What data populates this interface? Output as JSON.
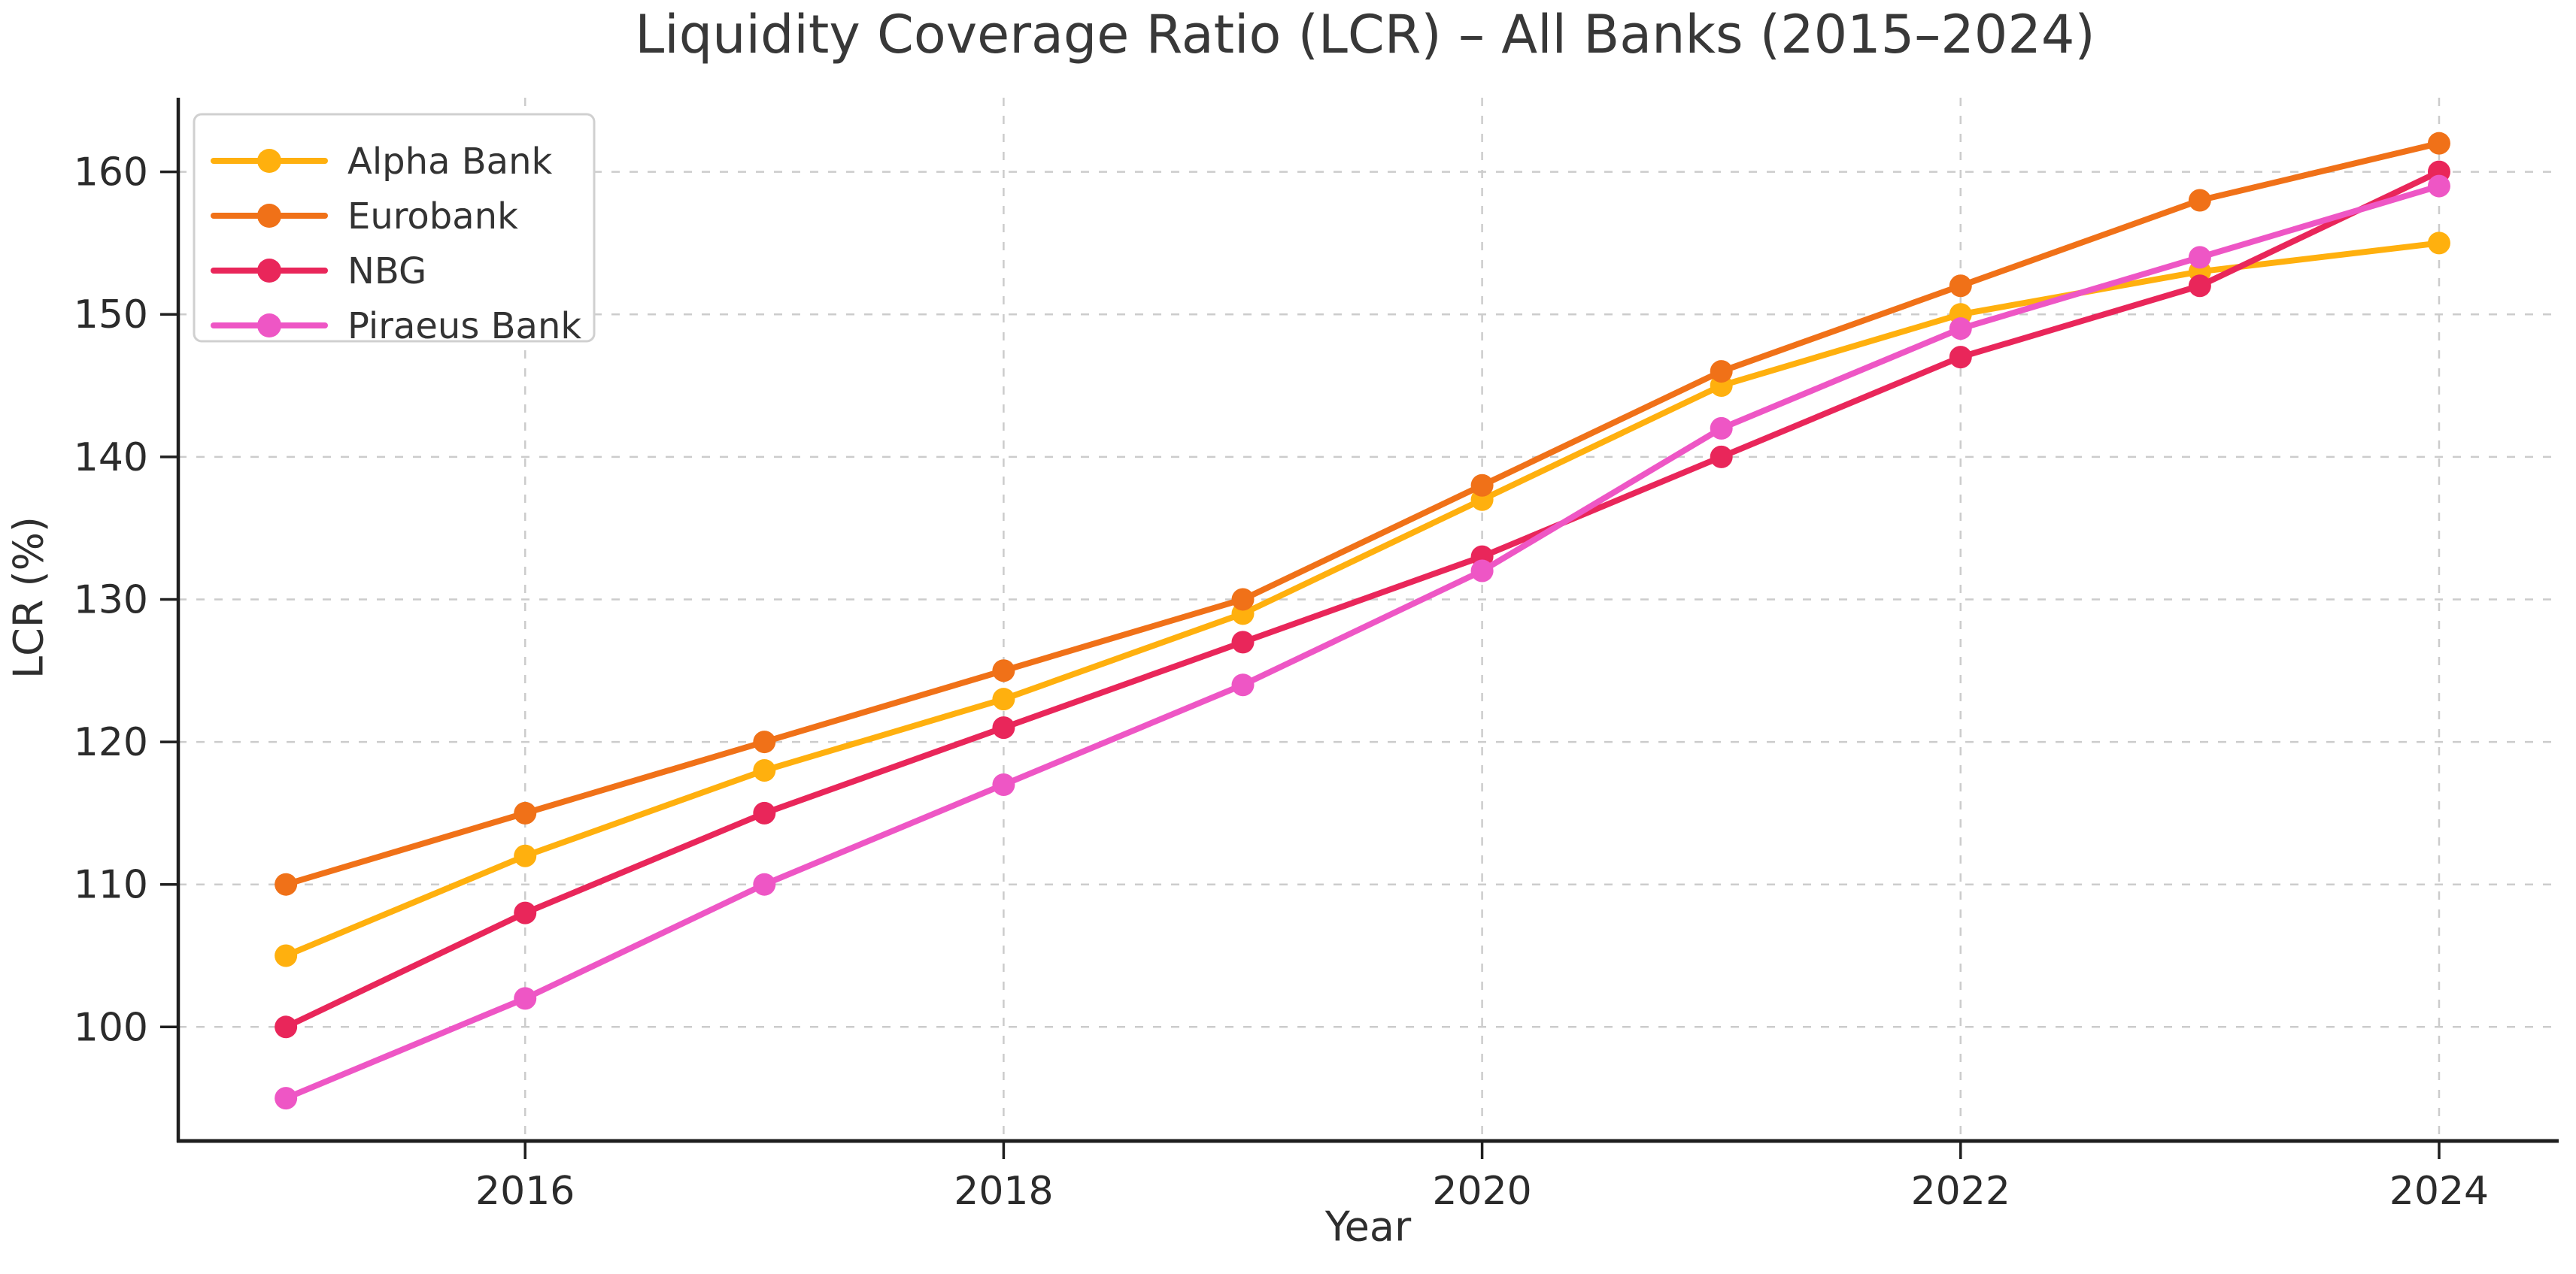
{
  "chart_data": {
    "type": "line",
    "title": "Liquidity Coverage Ratio (LCR) – All Banks (2015–2024)",
    "xlabel": "Year",
    "ylabel": "LCR (%)",
    "x": [
      2015,
      2016,
      2017,
      2018,
      2019,
      2020,
      2021,
      2022,
      2023,
      2024
    ],
    "series": [
      {
        "name": "Alpha Bank",
        "color": "#FFB00E",
        "values": [
          105,
          112,
          118,
          123,
          129,
          137,
          145,
          150,
          153,
          155
        ]
      },
      {
        "name": "Eurobank",
        "color": "#F07118",
        "values": [
          110,
          115,
          120,
          125,
          130,
          138,
          146,
          152,
          158,
          162
        ]
      },
      {
        "name": "NBG",
        "color": "#E9265A",
        "values": [
          100,
          108,
          115,
          121,
          127,
          133,
          140,
          147,
          152,
          160
        ]
      },
      {
        "name": "Piraeus Bank",
        "color": "#EE56C5",
        "values": [
          95,
          102,
          110,
          117,
          124,
          132,
          142,
          149,
          154,
          159
        ]
      }
    ],
    "x_ticks": [
      2016,
      2018,
      2020,
      2022,
      2024
    ],
    "y_ticks": [
      100,
      110,
      120,
      130,
      140,
      150,
      160
    ],
    "xlim": [
      2014.55,
      2024.5
    ],
    "ylim": [
      92.0,
      165.2
    ],
    "grid": true,
    "grid_style": "dashed",
    "legend_position": "upper left",
    "marker": "circle",
    "style": {
      "grid_color": "#cccccc",
      "spine_color": "#1f1f1f",
      "tick_color": "#1f1f1f",
      "text_color": "#2b2b2b",
      "title_color": "#383838",
      "legend_border": "#d0d0d0",
      "legend_fill": "#ffffff",
      "background": "#ffffff"
    }
  }
}
